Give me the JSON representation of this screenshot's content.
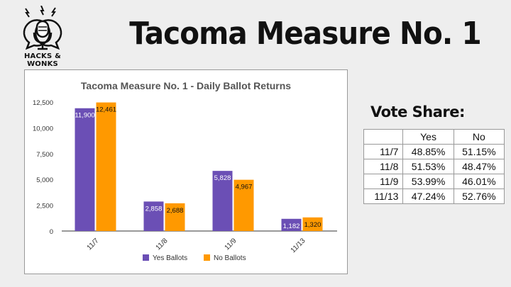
{
  "brand": {
    "logo_text": "HACKS & WONKS"
  },
  "page_title": "Tacoma Measure No. 1",
  "colors": {
    "yes": "#6b4fb5",
    "no": "#ff9900",
    "axis_text": "#333333",
    "grid": "#e0e0e0"
  },
  "chart_data": {
    "type": "bar",
    "title": "Tacoma Measure No. 1 - Daily Ballot Returns",
    "categories": [
      "11/7",
      "11/8",
      "11/9",
      "11/13"
    ],
    "series": [
      {
        "name": "Yes Ballots",
        "values": [
          11900,
          2858,
          5828,
          1182
        ],
        "labels": [
          "11,900",
          "2,858",
          "5,828",
          "1,182"
        ]
      },
      {
        "name": "No Ballots",
        "values": [
          12461,
          2688,
          4967,
          1320
        ],
        "labels": [
          "12,461",
          "2,688",
          "4,967",
          "1,320"
        ]
      }
    ],
    "yticks": [
      0,
      2500,
      5000,
      7500,
      10000,
      12500
    ],
    "ytick_labels": [
      "0",
      "2,500",
      "5,000",
      "7,500",
      "10,000",
      "12,500"
    ],
    "ylim": [
      0,
      12500
    ],
    "grid": false,
    "legend": "bottom",
    "xlabel": "",
    "ylabel": ""
  },
  "vote_share": {
    "title": "Vote Share:",
    "columns": [
      "",
      "Yes",
      "No"
    ],
    "rows": [
      {
        "date": "11/7",
        "yes": "48.85%",
        "no": "51.15%"
      },
      {
        "date": "11/8",
        "yes": "51.53%",
        "no": "48.47%"
      },
      {
        "date": "11/9",
        "yes": "53.99%",
        "no": "46.01%"
      },
      {
        "date": "11/13",
        "yes": "47.24%",
        "no": "52.76%"
      }
    ]
  }
}
